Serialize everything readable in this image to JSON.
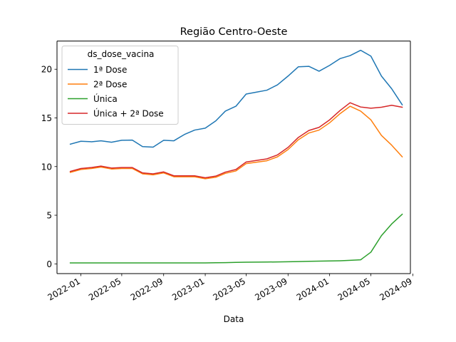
{
  "chart_data": {
    "type": "line",
    "title": "Região Centro-Oeste",
    "xlabel": "Data",
    "ylabel": "",
    "ylim": [
      -1.0,
      22.9
    ],
    "yticks": [
      0,
      5,
      10,
      15,
      20
    ],
    "xlim": [
      "2021-10-23",
      "2024-08-25"
    ],
    "xticks": [
      "2022-01",
      "2022-05",
      "2022-09",
      "2023-01",
      "2023-05",
      "2023-09",
      "2024-01",
      "2024-05",
      "2024-09"
    ],
    "legend": {
      "title": "ds_dose_vacina",
      "placement": "top-left"
    },
    "x": [
      "2021-12-01",
      "2022-01-01",
      "2022-02-01",
      "2022-03-01",
      "2022-04-01",
      "2022-05-01",
      "2022-06-01",
      "2022-07-01",
      "2022-08-01",
      "2022-09-01",
      "2022-10-01",
      "2022-11-01",
      "2022-12-01",
      "2023-01-01",
      "2023-02-01",
      "2023-03-01",
      "2023-04-01",
      "2023-05-01",
      "2023-06-01",
      "2023-07-01",
      "2023-08-01",
      "2023-09-01",
      "2023-10-01",
      "2023-11-01",
      "2023-12-01",
      "2024-01-01",
      "2024-02-01",
      "2024-03-01",
      "2024-04-01",
      "2024-05-01",
      "2024-06-01",
      "2024-07-01",
      "2024-08-01"
    ],
    "series": [
      {
        "name": "1ª Dose",
        "color": "#1f77b4",
        "values": [
          12.3,
          12.6,
          12.55,
          12.65,
          12.5,
          12.7,
          12.72,
          12.05,
          12.0,
          12.7,
          12.65,
          13.3,
          13.75,
          13.95,
          14.7,
          15.7,
          16.2,
          17.45,
          17.65,
          17.85,
          18.4,
          19.3,
          20.25,
          20.3,
          19.8,
          20.4,
          21.1,
          21.4,
          21.95,
          21.35,
          19.3,
          18.0,
          16.35
        ]
      },
      {
        "name": "2ª Dose",
        "color": "#ff7f0e",
        "values": [
          9.4,
          9.7,
          9.8,
          9.95,
          9.75,
          9.8,
          9.8,
          9.25,
          9.15,
          9.35,
          8.95,
          8.95,
          8.95,
          8.75,
          8.9,
          9.3,
          9.55,
          10.3,
          10.45,
          10.6,
          11.0,
          11.75,
          12.75,
          13.45,
          13.75,
          14.5,
          15.45,
          16.2,
          15.7,
          14.8,
          13.2,
          12.2,
          11.0
        ]
      },
      {
        "name": "Única",
        "color": "#2ca02c",
        "values": [
          0.1,
          0.1,
          0.1,
          0.1,
          0.1,
          0.1,
          0.1,
          0.1,
          0.1,
          0.1,
          0.1,
          0.1,
          0.1,
          0.1,
          0.12,
          0.13,
          0.15,
          0.17,
          0.18,
          0.19,
          0.2,
          0.22,
          0.24,
          0.26,
          0.28,
          0.3,
          0.32,
          0.36,
          0.42,
          1.2,
          2.9,
          4.1,
          5.1
        ]
      },
      {
        "name": "Única + 2ª Dose",
        "color": "#d62728",
        "values": [
          9.5,
          9.8,
          9.9,
          10.05,
          9.85,
          9.9,
          9.9,
          9.35,
          9.25,
          9.45,
          9.05,
          9.05,
          9.05,
          8.85,
          9.02,
          9.43,
          9.7,
          10.47,
          10.63,
          10.79,
          11.2,
          11.97,
          12.99,
          13.71,
          14.03,
          14.8,
          15.77,
          16.56,
          16.12,
          16.0,
          16.1,
          16.3,
          16.1
        ]
      }
    ]
  }
}
